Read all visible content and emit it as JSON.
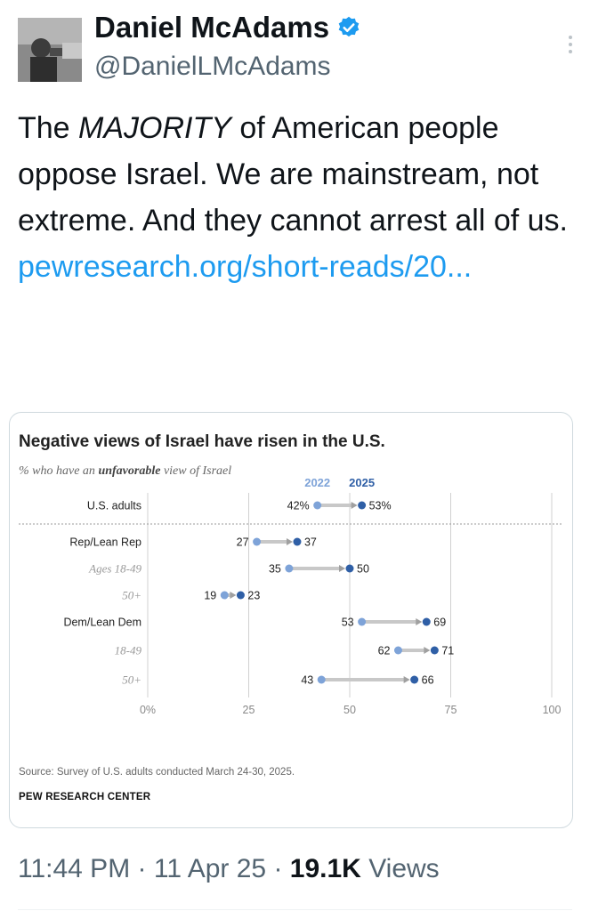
{
  "tweet": {
    "display_name": "Daniel McAdams",
    "handle": "@DanielLMcAdams",
    "text_part1": "The ",
    "text_emphasis": "MAJORITY",
    "text_part2": " of American people oppose Israel. We are mainstream, not extreme. And they cannot arrest all of us.",
    "link_text": "pewresearch.org/short-reads/20...",
    "time": "11:44 PM",
    "date": "11 Apr 25",
    "separator": "·",
    "views_count": "19.1K",
    "views_label": "Views",
    "verified_color": "#1d9bf0",
    "link_color": "#1d9bf0"
  },
  "chart_card": {
    "title": "Negative views of Israel have risen in the U.S.",
    "subtitle_pre": "% who have an ",
    "subtitle_bold": "unfavorable",
    "subtitle_post": " view of Israel",
    "source": "Source: Survey of U.S. adults conducted March 24-30, 2025.",
    "brand": "PEW RESEARCH CENTER"
  },
  "chart_data": {
    "type": "dot-arrow",
    "title": "Negative views of Israel have risen in the U.S.",
    "series_labels": [
      "2022",
      "2025"
    ],
    "series_colors": [
      "#7ea3d8",
      "#2f5fa6"
    ],
    "xlim": [
      0,
      100
    ],
    "x_ticks": [
      0,
      25,
      50,
      75,
      100
    ],
    "x_tick_labels": [
      "0%",
      "25",
      "50",
      "75",
      "100"
    ],
    "rows": [
      {
        "label": "U.S. adults",
        "v2022": 42,
        "v2025": 53,
        "l2022": "42%",
        "l2025": "53%",
        "style": "main"
      },
      {
        "label": "Rep/Lean Rep",
        "v2022": 27,
        "v2025": 37,
        "l2022": "27",
        "l2025": "37",
        "style": "main"
      },
      {
        "label": "Ages 18-49",
        "v2022": 35,
        "v2025": 50,
        "l2022": "35",
        "l2025": "50",
        "style": "sub"
      },
      {
        "label": "50+",
        "v2022": 19,
        "v2025": 23,
        "l2022": "19",
        "l2025": "23",
        "style": "sub"
      },
      {
        "label": "Dem/Lean Dem",
        "v2022": 53,
        "v2025": 69,
        "l2022": "53",
        "l2025": "69",
        "style": "main"
      },
      {
        "label": "18-49",
        "v2022": 62,
        "v2025": 71,
        "l2022": "62",
        "l2025": "71",
        "style": "sub"
      },
      {
        "label": "50+",
        "v2022": 43,
        "v2025": 66,
        "l2022": "43",
        "l2025": "66",
        "style": "sub"
      }
    ]
  }
}
